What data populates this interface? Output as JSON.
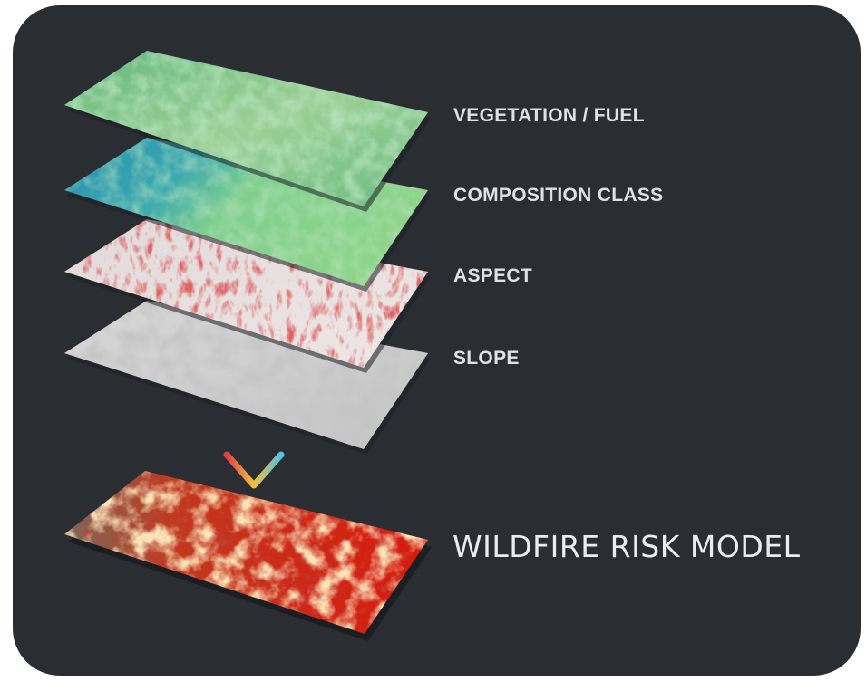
{
  "layers": [
    {
      "label": "VEGETATION / FUEL",
      "palette": [
        "#7fc486",
        "#a8d6a0",
        "#c9d8a6",
        "#5fb377"
      ]
    },
    {
      "label": "COMPOSITION CLASS",
      "palette": [
        "#2f9bb0",
        "#56c4b0",
        "#8fd48f",
        "#6ec08a"
      ]
    },
    {
      "label": "ASPECT",
      "palette": [
        "#d6cfcf",
        "#c23a3a",
        "#e8e4e4",
        "#b02828"
      ]
    },
    {
      "label": "SLOPE",
      "palette": [
        "#cfcfcf",
        "#f0f0f0",
        "#a8a8a8",
        "#bdbdbd"
      ]
    }
  ],
  "result": {
    "label": "WILDFIRE RISK MODEL",
    "palette": [
      "#d81a12",
      "#a80f0a",
      "#f6c27a",
      "#6a5e55"
    ]
  },
  "colors": {
    "background": "#2a2e33",
    "text": "#dde2e6",
    "arrow": [
      "#e04040",
      "#f0c040",
      "#50c0e0"
    ]
  }
}
